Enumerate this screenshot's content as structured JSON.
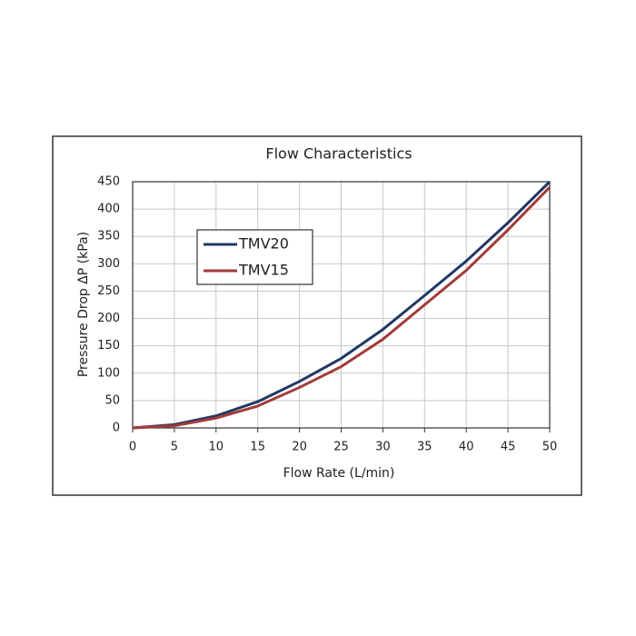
{
  "chart_data": {
    "type": "line",
    "title": "Flow Characteristics",
    "x_label": "Flow Rate (L/min)",
    "y_label": "Pressure Drop ΔP (kPa)",
    "x": [
      0,
      5,
      10,
      15,
      20,
      25,
      30,
      35,
      40,
      45,
      50
    ],
    "series": [
      {
        "name": "TMV20",
        "color": "#1f3864",
        "values": [
          0,
          6,
          22,
          48,
          85,
          127,
          180,
          242,
          305,
          375,
          450
        ]
      },
      {
        "name": "TMV15",
        "color": "#a33a3a",
        "values": [
          0,
          4,
          18,
          40,
          74,
          112,
          162,
          225,
          288,
          362,
          440
        ]
      }
    ],
    "xlim": [
      0,
      50
    ],
    "xticks": [
      0,
      5,
      10,
      15,
      20,
      25,
      30,
      35,
      40,
      45,
      50
    ],
    "ylim": [
      0,
      450
    ],
    "yticks": [
      0,
      50,
      100,
      150,
      200,
      250,
      300,
      350,
      400,
      450
    ],
    "grid": true,
    "legend": "upper left"
  }
}
